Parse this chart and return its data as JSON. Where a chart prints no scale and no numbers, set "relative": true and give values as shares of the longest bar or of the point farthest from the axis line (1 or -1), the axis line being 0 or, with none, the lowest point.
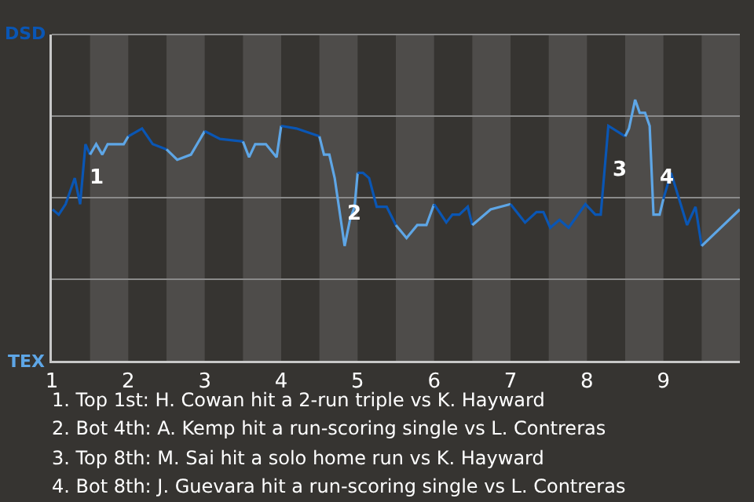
{
  "chart_data": {
    "type": "line",
    "relative": true,
    "xlim": [
      1,
      10
    ],
    "xticks": [
      1,
      2,
      3,
      4,
      5,
      6,
      7,
      8,
      9
    ],
    "grid": "y",
    "marker": "none",
    "line_style": "solid",
    "series": [
      {
        "color": "#0a56b4",
        "x": [
          1.01,
          1.09,
          1.18,
          1.3,
          1.37,
          1.44,
          1.5
        ],
        "values": [
          0.58,
          0.56,
          0.6,
          0.7,
          0.6,
          0.83,
          0.79
        ]
      },
      {
        "color": "#5ea6e6",
        "x": [
          1.5,
          1.58,
          1.66,
          1.73,
          1.94,
          2
        ],
        "values": [
          0.79,
          0.83,
          0.79,
          0.83,
          0.83,
          0.86
        ]
      },
      {
        "color": "#0a56b4",
        "x": [
          2,
          2.18,
          2.32,
          2.5
        ],
        "values": [
          0.86,
          0.89,
          0.83,
          0.81
        ]
      },
      {
        "color": "#5ea6e6",
        "x": [
          2.5,
          2.64,
          2.82,
          3
        ],
        "values": [
          0.81,
          0.77,
          0.79,
          0.88
        ]
      },
      {
        "color": "#0a56b4",
        "x": [
          3,
          3.2,
          3.5
        ],
        "values": [
          0.88,
          0.85,
          0.84
        ]
      },
      {
        "color": "#5ea6e6",
        "x": [
          3.5,
          3.58,
          3.66,
          3.8,
          3.94,
          4
        ],
        "values": [
          0.84,
          0.78,
          0.83,
          0.83,
          0.78,
          0.9
        ]
      },
      {
        "color": "#0a56b4",
        "x": [
          4,
          4.2,
          4.5
        ],
        "values": [
          0.9,
          0.89,
          0.86
        ]
      },
      {
        "color": "#5ea6e6",
        "x": [
          4.5,
          4.56,
          4.63,
          4.7,
          4.83,
          4.9,
          4.96,
          5
        ],
        "values": [
          0.86,
          0.79,
          0.79,
          0.7,
          0.44,
          0.54,
          0.59,
          0.72
        ]
      },
      {
        "color": "#0a56b4",
        "x": [
          5,
          5.07,
          5.15,
          5.25,
          5.38,
          5.5
        ],
        "values": [
          0.72,
          0.72,
          0.7,
          0.59,
          0.59,
          0.52
        ]
      },
      {
        "color": "#5ea6e6",
        "x": [
          5.5,
          5.64,
          5.78,
          5.9,
          6
        ],
        "values": [
          0.52,
          0.47,
          0.52,
          0.52,
          0.6
        ]
      },
      {
        "color": "#0a56b4",
        "x": [
          6,
          6.07,
          6.16,
          6.24,
          6.33,
          6.44,
          6.5
        ],
        "values": [
          0.6,
          0.57,
          0.53,
          0.56,
          0.56,
          0.59,
          0.52
        ]
      },
      {
        "color": "#5ea6e6",
        "x": [
          6.5,
          6.74,
          7
        ],
        "values": [
          0.52,
          0.58,
          0.6
        ]
      },
      {
        "color": "#0a56b4",
        "x": [
          7,
          7.19,
          7.34,
          7.43,
          7.52,
          7.64,
          7.76,
          7.98,
          8.11,
          8.18,
          8.28,
          8.5
        ],
        "values": [
          0.6,
          0.53,
          0.57,
          0.57,
          0.51,
          0.54,
          0.51,
          0.6,
          0.56,
          0.56,
          0.9,
          0.86
        ]
      },
      {
        "color": "#5ea6e6",
        "x": [
          8.5,
          8.55,
          8.63,
          8.69,
          8.76,
          8.82,
          8.87,
          8.95,
          9
        ],
        "values": [
          0.86,
          0.89,
          1,
          0.95,
          0.95,
          0.9,
          0.56,
          0.56,
          0.62
        ]
      },
      {
        "color": "#0a56b4",
        "x": [
          9,
          9.1,
          9.31,
          9.42,
          9.5
        ],
        "values": [
          0.62,
          0.72,
          0.52,
          0.59,
          0.44
        ]
      },
      {
        "color": "#5ea6e6",
        "x": [
          9.5,
          10
        ],
        "values": [
          0.44,
          0.58
        ]
      }
    ],
    "bands": [
      {
        "axis": "x",
        "from": 1.5,
        "to": 2,
        "color": "#4e4c4a"
      },
      {
        "axis": "x",
        "from": 2.5,
        "to": 3,
        "color": "#4e4c4a"
      },
      {
        "axis": "x",
        "from": 3.5,
        "to": 4,
        "color": "#4e4c4a"
      },
      {
        "axis": "x",
        "from": 4.5,
        "to": 5,
        "color": "#4e4c4a"
      },
      {
        "axis": "x",
        "from": 5.5,
        "to": 6,
        "color": "#4e4c4a"
      },
      {
        "axis": "x",
        "from": 6.5,
        "to": 7,
        "color": "#4e4c4a"
      },
      {
        "axis": "x",
        "from": 7.5,
        "to": 8,
        "color": "#4e4c4a"
      },
      {
        "axis": "x",
        "from": 8.5,
        "to": 9,
        "color": "#4e4c4a"
      },
      {
        "axis": "x",
        "from": 9.5,
        "to": 10,
        "color": "#4e4c4a"
      }
    ],
    "annotations": [
      {
        "text": "1",
        "x": 1.4,
        "y": 0.7
      },
      {
        "text": "2",
        "x": 4.77,
        "y": 0.56
      },
      {
        "text": "3",
        "x": 8.23,
        "y": 0.73
      },
      {
        "text": "4",
        "x": 8.85,
        "y": 0.7
      },
      "DSD",
      "TEX",
      "1. Top 1st: H. Cowan hit a 2-run triple vs K. Hayward",
      "2. Bot 4th: A. Kemp hit a run-scoring single vs L. Contreras",
      "3. Top 8th: M. Sai hit a solo home run vs K. Hayward",
      "4. Bot 8th: J. Guevara hit a run-scoring single vs L. Contreras"
    ]
  }
}
